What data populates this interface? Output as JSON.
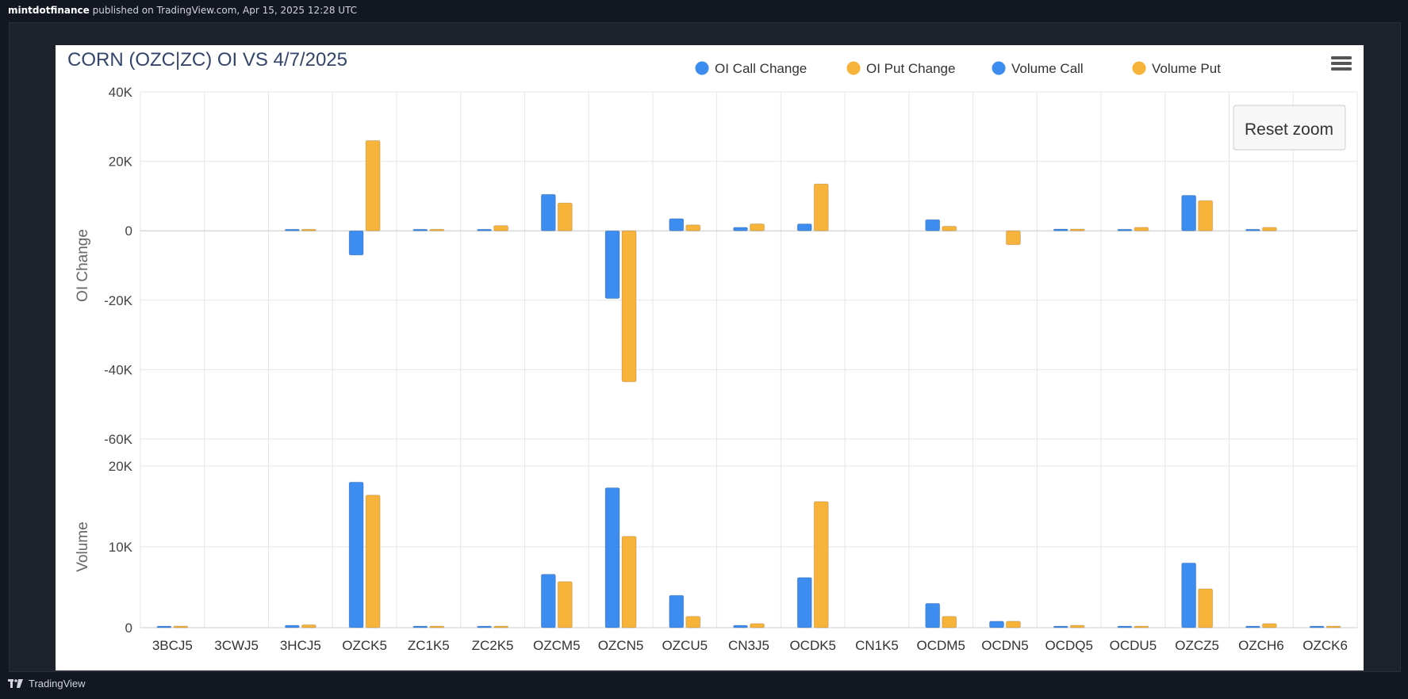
{
  "header": {
    "publisher": "mintdotfinance",
    "published_text": "published on TradingView.com, Apr 15, 2025 12:28 UTC"
  },
  "footer": {
    "brand": "TradingView"
  },
  "reset_zoom_label": "Reset zoom",
  "colors": {
    "call": "#3d8cf0",
    "put": "#f8b33a",
    "grid": "#e6e6e6",
    "title": "#33446a"
  },
  "chart_data": {
    "type": "bar",
    "title": "CORN (OZC|ZC) OI VS 4/7/2025",
    "legend_position": "top-right",
    "legend": [
      "OI Call Change",
      "OI Put Change",
      "Volume Call",
      "Volume Put"
    ],
    "categories": [
      "3BCJ5",
      "3CWJ5",
      "3HCJ5",
      "OZCK5",
      "ZC1K5",
      "ZC2K5",
      "OZCM5",
      "OZCN5",
      "OZCU5",
      "CN3J5",
      "OCDK5",
      "CN1K5",
      "OCDM5",
      "OCDN5",
      "OCDQ5",
      "OCDU5",
      "OZCZ5",
      "OZCH6",
      "OZCK6"
    ],
    "panels": [
      {
        "ylabel": "OI Change",
        "ylim": [
          -60000,
          40000
        ],
        "yticks": [
          {
            "value": 40000,
            "label": "40K"
          },
          {
            "value": 20000,
            "label": "20K"
          },
          {
            "value": 0,
            "label": "0"
          },
          {
            "value": -20000,
            "label": "-20K"
          },
          {
            "value": -40000,
            "label": "-40K"
          },
          {
            "value": -60000,
            "label": "-60K"
          }
        ],
        "series": [
          {
            "name": "OI Call Change",
            "values": [
              0,
              0,
              100,
              -7000,
              100,
              100,
              10500,
              -19500,
              3500,
              1000,
              2000,
              0,
              3200,
              0,
              500,
              200,
              10200,
              200,
              0
            ]
          },
          {
            "name": "OI Put Change",
            "values": [
              0,
              0,
              100,
              26000,
              100,
              1500,
              8000,
              -43500,
              1700,
              2000,
              13500,
              0,
              1300,
              -4000,
              500,
              1000,
              8700,
              1000,
              0
            ]
          }
        ]
      },
      {
        "ylabel": "Volume",
        "ylim": [
          0,
          20000
        ],
        "yticks": [
          {
            "value": 20000,
            "label": "20K"
          },
          {
            "value": 10000,
            "label": "10K"
          },
          {
            "value": 0,
            "label": "0"
          }
        ],
        "series": [
          {
            "name": "Volume Call",
            "values": [
              150,
              0,
              300,
              18000,
              50,
              50,
              6600,
              17300,
              4000,
              300,
              6200,
              0,
              3000,
              800,
              50,
              50,
              8000,
              200,
              50
            ]
          },
          {
            "name": "Volume Put",
            "values": [
              50,
              0,
              350,
              16400,
              50,
              50,
              5700,
              11300,
              1400,
              500,
              15600,
              0,
              1400,
              800,
              300,
              50,
              4800,
              500,
              50
            ]
          }
        ]
      }
    ]
  }
}
